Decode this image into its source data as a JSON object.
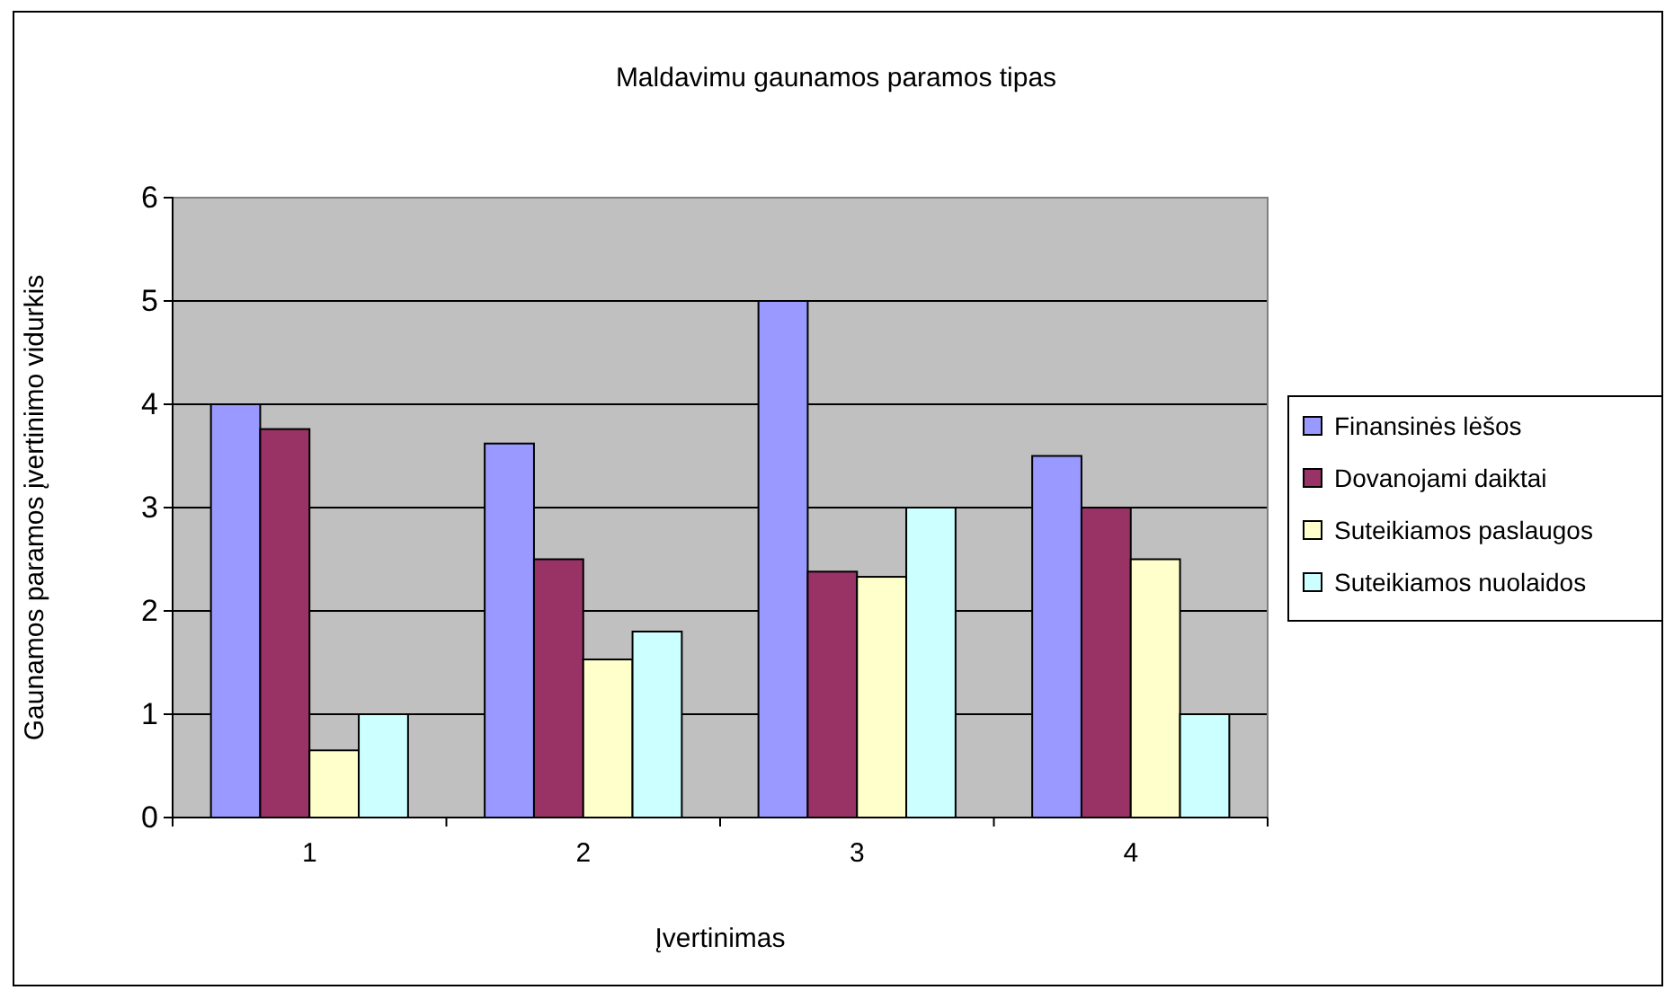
{
  "chart_data": {
    "type": "bar",
    "title": "Maldavimu gaunamos paramos tipas",
    "xlabel": "Įvertinimas",
    "ylabel": "Gaunamos paramos įvertinimo vidurkis",
    "categories": [
      "1",
      "2",
      "3",
      "4"
    ],
    "series": [
      {
        "name": "Finansinės lėšos",
        "color": "#9999ff",
        "values": [
          4.0,
          3.62,
          5.0,
          3.5
        ]
      },
      {
        "name": "Dovanojami daiktai",
        "color": "#993366",
        "values": [
          3.76,
          2.5,
          2.38,
          3.0
        ]
      },
      {
        "name": "Suteikiamos paslaugos",
        "color": "#ffffcc",
        "values": [
          0.65,
          1.53,
          2.33,
          2.5
        ]
      },
      {
        "name": "Suteikiamos nuolaidos",
        "color": "#ccffff",
        "values": [
          1.0,
          1.8,
          3.0,
          1.0
        ]
      }
    ],
    "ylim": [
      0,
      6
    ],
    "yticks": [
      0,
      1,
      2,
      3,
      4,
      5,
      6
    ],
    "grid": "y",
    "legend": "right"
  }
}
